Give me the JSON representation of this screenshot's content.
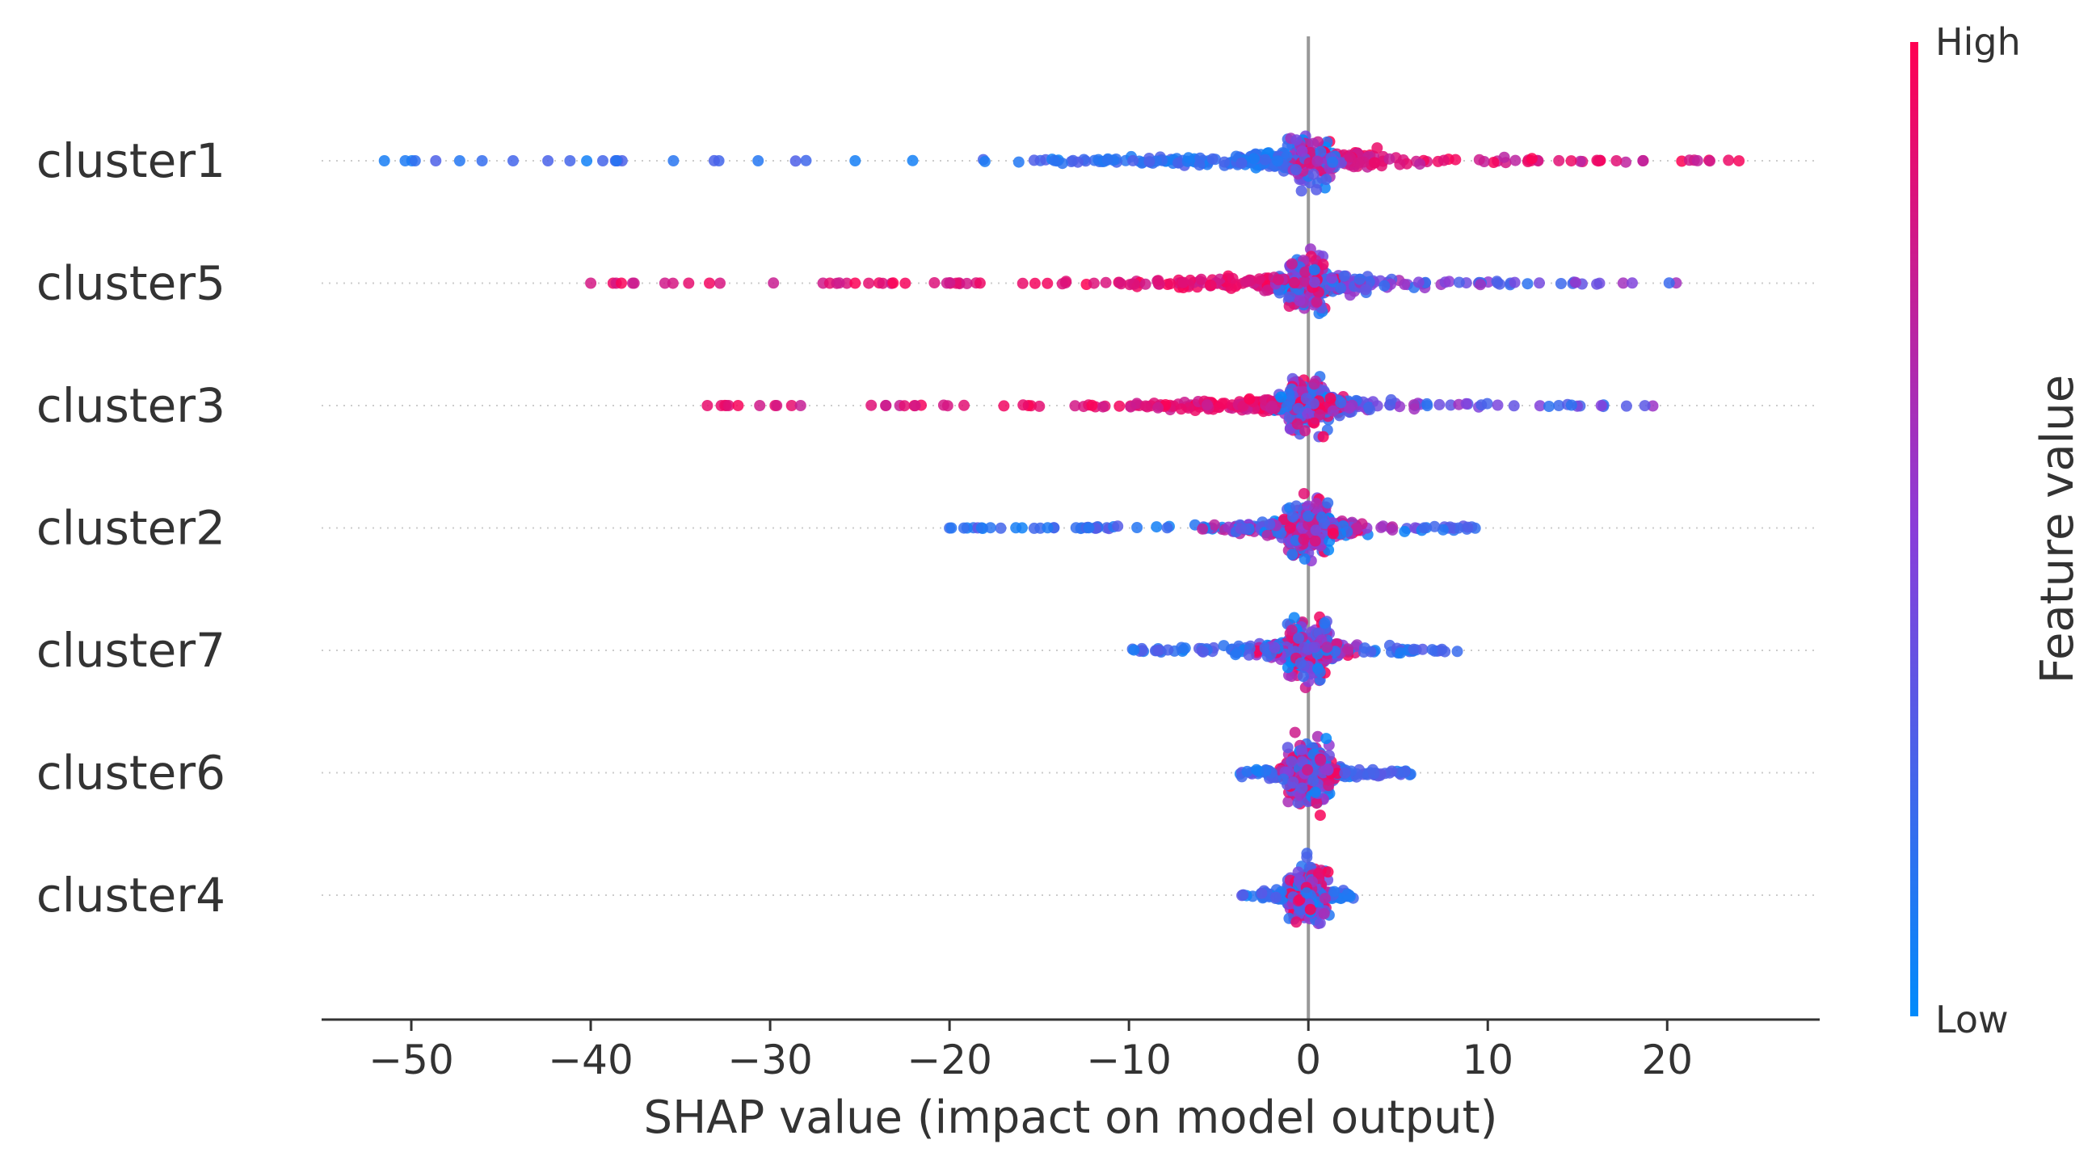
{
  "chart_data": {
    "type": "scatter",
    "subtype": "shap-beeswarm",
    "title": "",
    "xlabel": "SHAP value (impact on model output)",
    "ylabel": "",
    "xlim": [
      -55,
      28.5
    ],
    "xticks": [
      -50,
      -40,
      -30,
      -20,
      -10,
      0,
      10,
      20
    ],
    "xtick_labels": [
      "−50",
      "−40",
      "−30",
      "−20",
      "−10",
      "0",
      "10",
      "20"
    ],
    "features": [
      {
        "name": "cluster1",
        "min": -51.5,
        "max": 24.0,
        "core": 15,
        "low_side": "negative"
      },
      {
        "name": "cluster5",
        "min": -40.0,
        "max": 20.5,
        "core": 13,
        "low_side": "positive"
      },
      {
        "name": "cluster3",
        "min": -33.5,
        "max": 19.2,
        "core": 12,
        "low_side": "positive"
      },
      {
        "name": "cluster2",
        "min": -20.0,
        "max": 9.3,
        "core": 10,
        "low_side": "mixed"
      },
      {
        "name": "cluster7",
        "min": -9.8,
        "max": 8.3,
        "core": 9,
        "low_side": "mixed"
      },
      {
        "name": "cluster6",
        "min": -3.8,
        "max": 5.7,
        "core": 6,
        "low_side": "mixed"
      },
      {
        "name": "cluster4",
        "min": -3.7,
        "max": 2.5,
        "core": 4,
        "low_side": "mixed"
      }
    ],
    "colorbar": {
      "label": "Feature value",
      "high_label": "High",
      "low_label": "Low",
      "high_color": "#ff0052",
      "mid_color": "#8a3dd9",
      "low_color": "#008bfb"
    },
    "zero_line": 0,
    "legend": "right"
  }
}
